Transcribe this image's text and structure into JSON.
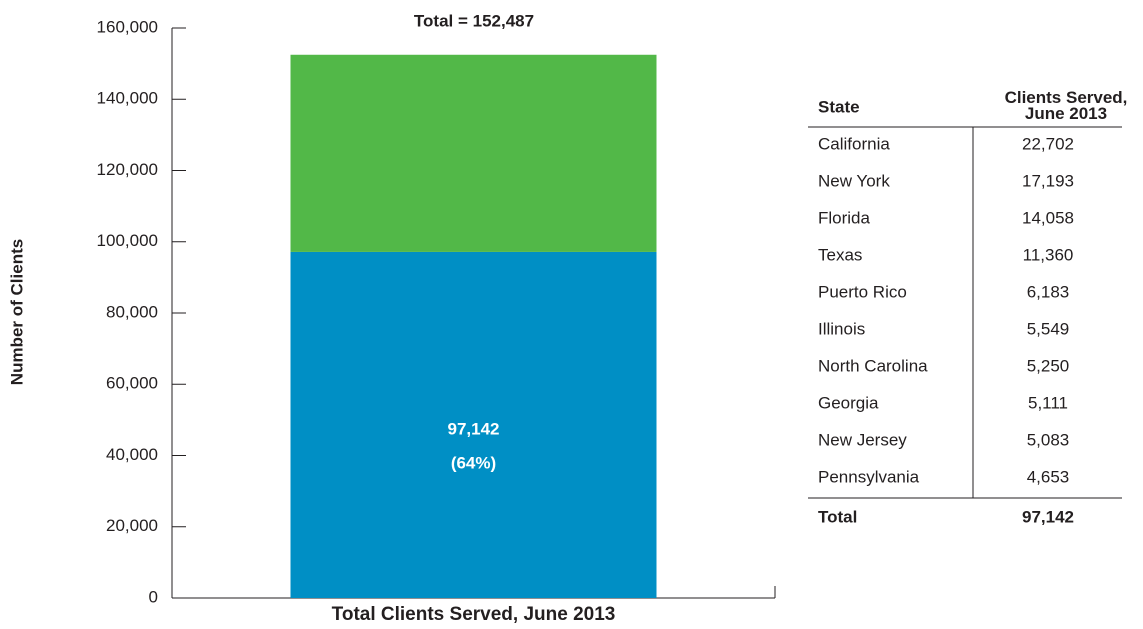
{
  "chart_data": {
    "type": "stacked_bar",
    "categories": [
      "Total Clients Served, June 2013"
    ],
    "y_label": "Number of Clients",
    "annotation": "Total = 152,487",
    "series": [
      {
        "color": "#008fc5",
        "values": [
          97142
        ],
        "value_labels": [
          "97,142"
        ],
        "share_labels": [
          "(64%)"
        ]
      },
      {
        "color": "#52b848",
        "values": [
          55345
        ]
      }
    ],
    "ylim": [
      0,
      160000
    ],
    "yticks": [
      0,
      {
        "value": 20000,
        "label": "20,000"
      },
      {
        "value": 40000,
        "label": "40,000"
      },
      {
        "value": 60000,
        "label": "60,000"
      },
      {
        "value": 80000,
        "label": "80,000"
      },
      {
        "value": 100000,
        "label": "100,000"
      },
      {
        "value": 120000,
        "label": "120,000"
      },
      {
        "value": 140000,
        "label": "140,000"
      },
      {
        "value": 160000,
        "label": "160,000"
      }
    ]
  },
  "table": {
    "header": [
      "State",
      "Clients Served, June 2013"
    ],
    "rows": [
      [
        "California",
        "22,702"
      ],
      [
        "New York",
        "17,193"
      ],
      [
        "Florida",
        "14,058"
      ],
      [
        "Texas",
        "11,360"
      ],
      [
        "Puerto Rico",
        "6,183"
      ],
      [
        "Illinois",
        "5,549"
      ],
      [
        "North Carolina",
        "5,250"
      ],
      [
        "Georgia",
        "5,111"
      ],
      [
        "New Jersey",
        "5,083"
      ],
      [
        "Pennsylvania",
        "4,653"
      ]
    ],
    "total": [
      "Total",
      "97,142"
    ]
  }
}
